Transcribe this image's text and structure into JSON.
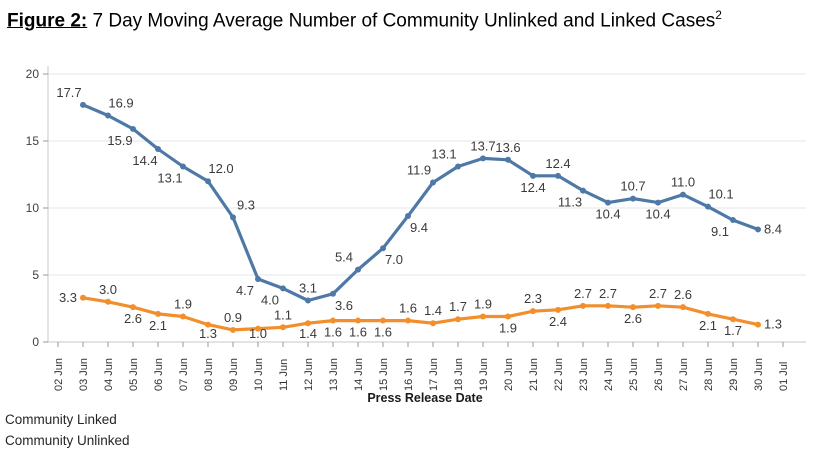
{
  "title": {
    "prefix": "Figure 2:",
    "text": " 7 Day Moving Average Number of Community Unlinked and Linked Cases",
    "superscript": "2"
  },
  "legend": {
    "items": [
      "Community Linked",
      "Community Unlinked"
    ]
  },
  "chart_data": {
    "type": "line",
    "title": "Figure 2: 7 Day Moving Average Number of Community Unlinked and Linked Cases",
    "xlabel": "Press Release Date",
    "ylabel": "",
    "ylim": [
      0,
      20
    ],
    "yticks": [
      0,
      5,
      10,
      15,
      20
    ],
    "grid": "horizontal",
    "legend_position": "bottom-left",
    "x_categories": [
      "02 Jun",
      "03 Jun",
      "04 Jun",
      "05 Jun",
      "06 Jun",
      "07 Jun",
      "08 Jun",
      "09 Jun",
      "10 Jun",
      "11 Jun",
      "12 Jun",
      "13 Jun",
      "14 Jun",
      "15 Jun",
      "16 Jun",
      "17 Jun",
      "18 Jun",
      "19 Jun",
      "20 Jun",
      "21 Jun",
      "22 Jun",
      "23 Jun",
      "24 Jun",
      "25 Jun",
      "26 Jun",
      "27 Jun",
      "28 Jun",
      "29 Jun",
      "30 Jun",
      "01 Jul"
    ],
    "series": [
      {
        "name": "Community Linked",
        "color": "#4e79a7",
        "start_index": 1,
        "values": [
          17.7,
          16.9,
          15.9,
          14.4,
          13.1,
          12.0,
          9.3,
          4.7,
          4.0,
          3.1,
          3.6,
          5.4,
          7.0,
          9.4,
          11.9,
          13.1,
          13.7,
          13.6,
          12.4,
          12.4,
          11.3,
          10.4,
          10.7,
          10.4,
          11.0,
          10.1,
          9.1,
          8.4
        ],
        "label_placements": [
          "above-left",
          "above-right",
          "below-left",
          "below-left",
          "below-left",
          "above-right",
          "above-right",
          "below-left",
          "below-left",
          "above",
          "below-right",
          "above-left",
          "below-right",
          "below-right",
          "above-left",
          "above-left",
          "above",
          "above",
          "below",
          "above",
          "below-left",
          "below",
          "above",
          "below",
          "above",
          "above-right",
          "below-left",
          "right"
        ]
      },
      {
        "name": "Community Unlinked",
        "color": "#f28e2b",
        "start_index": 1,
        "values": [
          3.3,
          3.0,
          2.6,
          2.1,
          1.9,
          1.3,
          0.9,
          1.0,
          1.1,
          1.4,
          1.6,
          1.6,
          1.6,
          1.6,
          1.4,
          1.7,
          1.9,
          1.9,
          2.3,
          2.4,
          2.7,
          2.7,
          2.6,
          2.7,
          2.6,
          2.1,
          1.7,
          1.3
        ],
        "label_placements": [
          "left",
          "above",
          "below",
          "below",
          "above",
          "below",
          "above",
          "below",
          "above",
          "below",
          "below",
          "below",
          "below",
          "above",
          "above",
          "above",
          "above",
          "below",
          "above",
          "below",
          "above",
          "above",
          "below",
          "above",
          "above",
          "below",
          "below",
          "right"
        ]
      }
    ]
  }
}
